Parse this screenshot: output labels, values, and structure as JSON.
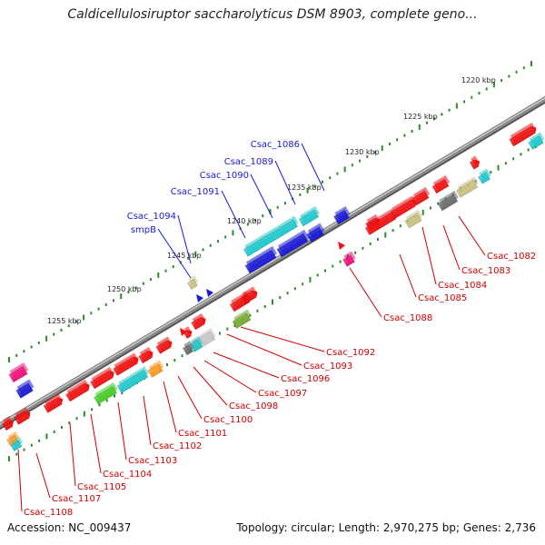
{
  "title": "Caldicellulosiruptor saccharolyticus DSM 8903, complete geno...",
  "footer": {
    "accession": "Accession: NC_009437",
    "topology": "Topology: circular; Length: 2,970,275 bp; Genes: 2,736"
  },
  "ruler_labels": [
    "1220 kbp",
    "1225 kbp",
    "1230 kbp",
    "1235 kbp",
    "1240 kbp",
    "1245 kbp",
    "1250 kbp",
    "1255 kbp"
  ],
  "gene_labels_top": [
    "Csac_1086",
    "Csac_1089",
    "Csac_1090",
    "Csac_1091",
    "Csac_1094",
    "smpB"
  ],
  "gene_labels_bottom": [
    "Csac_1082",
    "Csac_1083",
    "Csac_1084",
    "Csac_1085",
    "Csac_1088",
    "Csac_1092",
    "Csac_1093",
    "Csac_1096",
    "Csac_1097",
    "Csac_1098",
    "Csac_1100",
    "Csac_1101",
    "Csac_1102",
    "Csac_1103",
    "Csac_1104",
    "Csac_1105",
    "Csac_1107",
    "Csac_1108"
  ],
  "colors": {
    "backbone": "#8a8a8a",
    "ruler_dot": "#2e8b2e",
    "forward_label": "#1a1ad0",
    "reverse_label": "#cc0000",
    "red": "#ee1111",
    "blue": "#1a1ad6",
    "cyan": "#1ec8cc",
    "khaki": "#c8c080",
    "darkgray": "#6a6a6a",
    "lightgray": "#c8c8c8",
    "magenta": "#ee1177",
    "green": "#44cc22",
    "olive": "#77aa33",
    "orange": "#ff9922"
  }
}
